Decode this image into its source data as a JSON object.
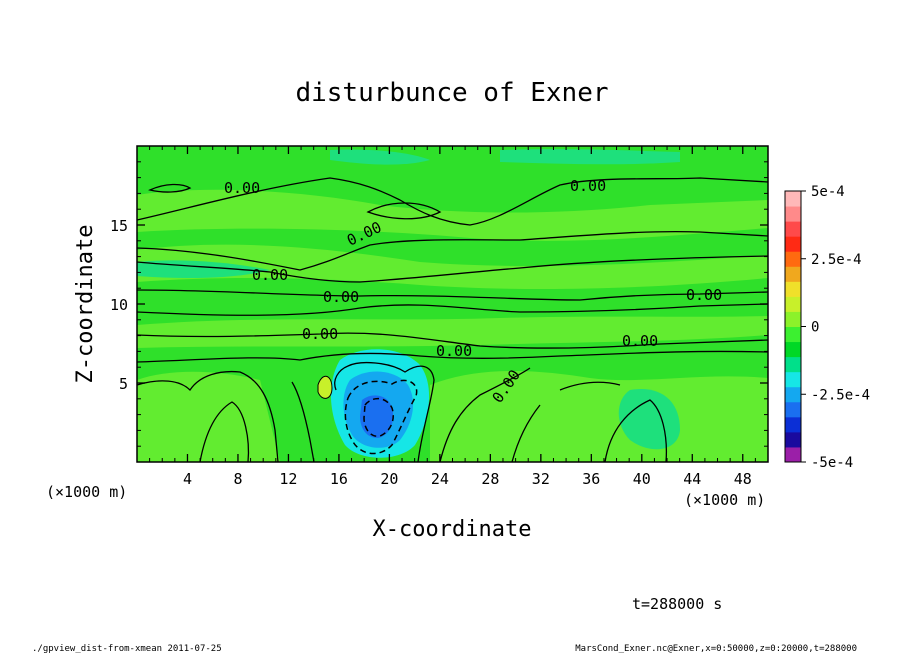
{
  "chart_data": {
    "type": "heatmap",
    "title": "disturbunce of Exner",
    "xlabel": "X-coordinate",
    "ylabel": "Z-coordinate",
    "x_units": "(×1000 m)",
    "x_units_lower": "(×1000 m)",
    "y_units": "(×1000 m)",
    "xlim": [
      0,
      50
    ],
    "ylim": [
      0,
      20
    ],
    "x_ticks": [
      "4",
      "8",
      "12",
      "16",
      "20",
      "24",
      "28",
      "32",
      "36",
      "40",
      "44",
      "48"
    ],
    "y_ticks": [
      "5",
      "10",
      "15"
    ],
    "colorbar": {
      "range": [
        -0.0005,
        0.0005
      ],
      "labels": [
        "5e-4",
        "2.5e-4",
        "0",
        "-2.5e-4",
        "-5e-4"
      ],
      "colors": [
        "#9b1fa8",
        "#1a0a9e",
        "#0b2fd6",
        "#1a6ff0",
        "#14a8f0",
        "#16e6e6",
        "#00e08a",
        "#00d826",
        "#3cf030",
        "#8cf22a",
        "#c8f02a",
        "#f0e02a",
        "#f0a81e",
        "#ff6a10",
        "#ff2a14",
        "#ff4a4a",
        "#ff8a8a",
        "#ffb8b8"
      ]
    },
    "contour_labels": [
      "0.00",
      "0.00",
      "0.00",
      "0.00",
      "0.00",
      "0.00",
      "0.00",
      "0.00",
      "0.00",
      "0.00"
    ],
    "field_note": "mostly near-zero disturbance; negative minimum centered near x=19, z=3"
  },
  "annotations": {
    "time": "t=288000 s",
    "footer_left": "./gpview_dist-from-xmean   2011-07-25",
    "footer_right": "MarsCond_Exner.nc@Exner,x=0:50000,z=0:20000,t=288000"
  }
}
